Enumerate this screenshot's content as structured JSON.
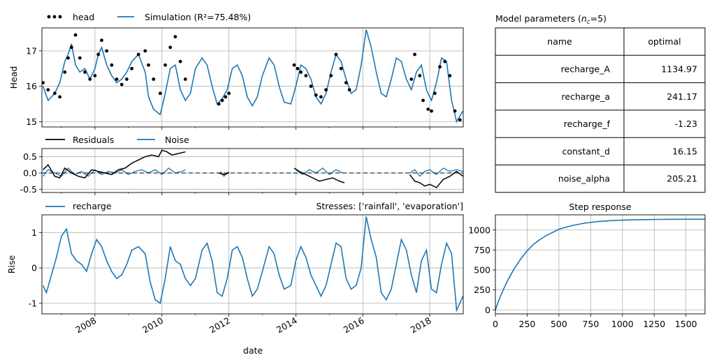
{
  "figure": {
    "x_axis_label": "date",
    "x_tick_labels": [
      "2008",
      "2010",
      "2012",
      "2014",
      "2016",
      "2018"
    ]
  },
  "chart_data": [
    {
      "id": "head",
      "type": "line",
      "ylabel": "Head",
      "xlim": [
        "2006-06-01",
        "2018-12-31"
      ],
      "ylim": [
        14.85,
        17.65
      ],
      "yticks": [
        15,
        16,
        17
      ],
      "grid": true,
      "legend": [
        "head",
        "Simulation (R²=75.48%)"
      ],
      "legend_placement": "top-left, above axes",
      "colors": {
        "observed": "#000000",
        "simulation": "#1f77b4"
      },
      "series": [
        {
          "name": "head",
          "style": "dots",
          "x": [
            2006.45,
            2006.6,
            2006.8,
            2006.95,
            2007.1,
            2007.2,
            2007.3,
            2007.42,
            2007.55,
            2007.7,
            2007.85,
            2008.0,
            2008.1,
            2008.2,
            2008.35,
            2008.5,
            2008.65,
            2008.8,
            2008.95,
            2009.1,
            2009.3,
            2009.5,
            2009.6,
            2009.75,
            2009.95,
            2010.1,
            2010.25,
            2010.4,
            2010.55,
            2010.7,
            2011.7,
            2011.8,
            2011.9,
            2012.0,
            2013.95,
            2014.05,
            2014.15,
            2014.3,
            2014.45,
            2014.6,
            2014.75,
            2014.9,
            2015.05,
            2015.2,
            2015.35,
            2015.5,
            2015.6,
            2017.45,
            2017.55,
            2017.7,
            2017.8,
            2017.95,
            2018.05,
            2018.15,
            2018.3,
            2018.45,
            2018.6,
            2018.75,
            2018.9
          ],
          "y": [
            16.1,
            15.9,
            15.8,
            15.7,
            16.4,
            16.8,
            17.1,
            17.45,
            16.8,
            16.4,
            16.2,
            16.3,
            16.9,
            17.3,
            17.0,
            16.6,
            16.2,
            16.05,
            16.2,
            16.5,
            16.9,
            17.0,
            16.6,
            16.2,
            15.8,
            16.6,
            17.1,
            17.4,
            16.7,
            16.2,
            15.5,
            15.6,
            15.7,
            15.8,
            16.6,
            16.5,
            16.4,
            16.3,
            16.0,
            15.75,
            15.7,
            15.9,
            16.3,
            16.9,
            16.5,
            16.1,
            15.9,
            16.2,
            16.9,
            16.3,
            15.6,
            15.35,
            15.3,
            15.8,
            16.55,
            16.7,
            16.3,
            15.3,
            15.05
          ]
        },
        {
          "name": "Simulation (R²=75.48%)",
          "style": "line",
          "x": [
            2006.45,
            2006.6,
            2006.8,
            2006.95,
            2007.1,
            2007.2,
            2007.3,
            2007.42,
            2007.55,
            2007.7,
            2007.85,
            2008.0,
            2008.1,
            2008.2,
            2008.35,
            2008.5,
            2008.65,
            2008.8,
            2008.95,
            2009.1,
            2009.3,
            2009.5,
            2009.6,
            2009.75,
            2009.95,
            2010.1,
            2010.25,
            2010.4,
            2010.55,
            2010.7,
            2010.85,
            2011.0,
            2011.2,
            2011.35,
            2011.5,
            2011.65,
            2011.8,
            2011.95,
            2012.1,
            2012.25,
            2012.4,
            2012.55,
            2012.7,
            2012.85,
            2013.0,
            2013.2,
            2013.35,
            2013.5,
            2013.65,
            2013.85,
            2014.0,
            2014.15,
            2014.3,
            2014.45,
            2014.6,
            2014.75,
            2014.9,
            2015.05,
            2015.2,
            2015.35,
            2015.5,
            2015.65,
            2015.8,
            2015.95,
            2016.1,
            2016.25,
            2016.4,
            2016.55,
            2016.7,
            2016.85,
            2017.0,
            2017.15,
            2017.3,
            2017.45,
            2017.6,
            2017.75,
            2017.9,
            2018.05,
            2018.2,
            2018.35,
            2018.5,
            2018.65,
            2018.8,
            2018.99
          ],
          "y": [
            16.0,
            15.6,
            15.8,
            16.1,
            16.7,
            16.9,
            17.2,
            16.6,
            16.4,
            16.5,
            16.2,
            16.5,
            16.9,
            17.1,
            16.6,
            16.3,
            16.1,
            16.2,
            16.4,
            16.7,
            16.9,
            16.4,
            15.7,
            15.35,
            15.2,
            15.8,
            16.5,
            16.6,
            15.9,
            15.6,
            15.8,
            16.5,
            16.8,
            16.6,
            16.0,
            15.5,
            15.65,
            15.9,
            16.5,
            16.6,
            16.3,
            15.7,
            15.45,
            15.7,
            16.3,
            16.8,
            16.6,
            16.0,
            15.55,
            15.5,
            16.0,
            16.6,
            16.5,
            16.2,
            15.7,
            15.5,
            15.8,
            16.4,
            16.9,
            16.7,
            16.2,
            15.8,
            15.9,
            16.6,
            17.6,
            17.1,
            16.4,
            15.8,
            15.7,
            16.2,
            16.8,
            16.7,
            16.2,
            15.9,
            16.4,
            16.6,
            15.9,
            15.6,
            16.1,
            16.8,
            16.7,
            15.6,
            15.0,
            15.3
          ]
        }
      ]
    },
    {
      "id": "residuals",
      "type": "line",
      "ylim": [
        -0.6,
        0.75
      ],
      "yticks": [
        -0.5,
        0.0,
        0.5
      ],
      "ytick_labels": [
        "-0.5",
        "0.0",
        "0.5"
      ],
      "grid": true,
      "legend": [
        "Residuals",
        "Noise"
      ],
      "colors": {
        "residuals": "#000000",
        "noise": "#1f77b4"
      },
      "series": [
        {
          "name": "Residuals",
          "segments": [
            {
              "x": [
                2006.45,
                2006.6,
                2006.8,
                2006.95,
                2007.1,
                2007.3,
                2007.5,
                2007.7,
                2007.9,
                2008.1,
                2008.3,
                2008.5,
                2008.7,
                2008.9,
                2009.1,
                2009.3,
                2009.5,
                2009.7,
                2009.9,
                2010.0,
                2010.15,
                2010.3,
                2010.5,
                2010.7
              ],
              "y": [
                0.1,
                0.25,
                -0.1,
                -0.15,
                0.15,
                0.0,
                -0.1,
                -0.15,
                0.1,
                0.05,
                0.0,
                -0.05,
                0.1,
                0.15,
                0.3,
                0.4,
                0.5,
                0.55,
                0.5,
                0.7,
                0.65,
                0.55,
                0.6,
                0.65
              ]
            },
            {
              "x": [
                2011.7,
                2011.85,
                2012.0
              ],
              "y": [
                0.0,
                -0.05,
                0.0
              ]
            },
            {
              "x": [
                2013.95,
                2014.1,
                2014.3,
                2014.5,
                2014.7,
                2014.9,
                2015.1,
                2015.3,
                2015.45
              ],
              "y": [
                0.15,
                0.05,
                -0.05,
                -0.15,
                -0.25,
                -0.2,
                -0.15,
                -0.25,
                -0.3
              ]
            },
            {
              "x": [
                2017.4,
                2017.55,
                2017.7,
                2017.85,
                2018.0,
                2018.2,
                2018.4,
                2018.6,
                2018.8,
                2018.99
              ],
              "y": [
                -0.05,
                -0.25,
                -0.3,
                -0.4,
                -0.35,
                -0.45,
                -0.2,
                -0.1,
                0.05,
                -0.1
              ]
            }
          ]
        },
        {
          "name": "Noise",
          "segments": [
            {
              "x": [
                2006.45,
                2006.6,
                2006.8,
                2007.0,
                2007.2,
                2007.4,
                2007.6,
                2007.8,
                2008.0,
                2008.2,
                2008.4,
                2008.6,
                2008.8,
                2009.0,
                2009.2,
                2009.4,
                2009.6,
                2009.8,
                2010.0,
                2010.2,
                2010.4,
                2010.6,
                2010.7
              ],
              "y": [
                -0.1,
                0.1,
                0.0,
                -0.1,
                0.15,
                -0.05,
                0.05,
                -0.1,
                0.1,
                -0.05,
                0.05,
                0.0,
                0.1,
                -0.05,
                0.05,
                0.1,
                0.0,
                0.1,
                -0.05,
                0.15,
                0.0,
                0.05,
                0.1
              ]
            },
            {
              "x": [
                2011.75,
                2011.85,
                2012.0
              ],
              "y": [
                0.05,
                -0.1,
                0.05
              ]
            },
            {
              "x": [
                2014.0,
                2014.2,
                2014.4,
                2014.6,
                2014.8,
                2015.0,
                2015.2,
                2015.4
              ],
              "y": [
                0.1,
                -0.05,
                0.1,
                0.0,
                0.15,
                -0.05,
                0.1,
                0.0
              ]
            },
            {
              "x": [
                2017.4,
                2017.55,
                2017.7,
                2017.85,
                2018.0,
                2018.2,
                2018.4,
                2018.6,
                2018.8,
                2018.99
              ],
              "y": [
                0.0,
                0.1,
                -0.1,
                0.05,
                0.1,
                -0.05,
                0.15,
                0.05,
                0.1,
                0.05
              ]
            }
          ]
        }
      ],
      "zero_line": {
        "y": 0,
        "style": "dashed",
        "color": "#000000"
      }
    },
    {
      "id": "recharge",
      "type": "line",
      "title": "Stresses: ['rainfall', 'evaporation']",
      "ylabel": "Rise",
      "ylim": [
        -1.3,
        1.5
      ],
      "yticks": [
        -1,
        0,
        1
      ],
      "grid": true,
      "legend": [
        "recharge"
      ],
      "colors": {
        "recharge": "#1f77b4"
      },
      "series": [
        {
          "name": "recharge",
          "x": [
            2006.45,
            2006.55,
            2006.7,
            2006.85,
            2007.0,
            2007.15,
            2007.3,
            2007.45,
            2007.6,
            2007.75,
            2007.9,
            2008.05,
            2008.2,
            2008.35,
            2008.5,
            2008.65,
            2008.8,
            2008.95,
            2009.1,
            2009.3,
            2009.5,
            2009.65,
            2009.8,
            2009.95,
            2010.1,
            2010.25,
            2010.4,
            2010.55,
            2010.7,
            2010.85,
            2011.0,
            2011.2,
            2011.35,
            2011.5,
            2011.65,
            2011.8,
            2011.95,
            2012.1,
            2012.25,
            2012.4,
            2012.55,
            2012.7,
            2012.85,
            2013.0,
            2013.2,
            2013.35,
            2013.5,
            2013.65,
            2013.85,
            2014.0,
            2014.15,
            2014.3,
            2014.45,
            2014.6,
            2014.75,
            2014.9,
            2015.05,
            2015.2,
            2015.35,
            2015.5,
            2015.65,
            2015.8,
            2015.95,
            2016.1,
            2016.25,
            2016.4,
            2016.55,
            2016.7,
            2016.85,
            2017.0,
            2017.15,
            2017.3,
            2017.45,
            2017.6,
            2017.75,
            2017.9,
            2018.05,
            2018.2,
            2018.35,
            2018.5,
            2018.65,
            2018.8,
            2018.99
          ],
          "y": [
            -0.5,
            -0.7,
            -0.2,
            0.3,
            0.9,
            1.1,
            0.4,
            0.2,
            0.1,
            -0.1,
            0.4,
            0.8,
            0.6,
            0.2,
            -0.1,
            -0.3,
            -0.2,
            0.1,
            0.5,
            0.6,
            0.4,
            -0.4,
            -0.9,
            -1.0,
            -0.3,
            0.6,
            0.2,
            0.1,
            -0.3,
            -0.5,
            -0.3,
            0.5,
            0.7,
            0.2,
            -0.7,
            -0.8,
            -0.3,
            0.5,
            0.6,
            0.3,
            -0.3,
            -0.8,
            -0.6,
            -0.1,
            0.6,
            0.4,
            -0.2,
            -0.6,
            -0.5,
            0.2,
            0.6,
            0.3,
            -0.2,
            -0.5,
            -0.8,
            -0.5,
            0.1,
            0.7,
            0.6,
            -0.3,
            -0.6,
            -0.5,
            0.0,
            1.45,
            0.8,
            0.3,
            -0.7,
            -0.9,
            -0.6,
            0.1,
            0.8,
            0.5,
            -0.2,
            -0.7,
            0.2,
            0.5,
            -0.6,
            -0.7,
            0.1,
            0.7,
            0.4,
            -1.2,
            -0.8
          ]
        }
      ]
    },
    {
      "id": "step-response",
      "type": "line",
      "title": "Step response",
      "xlim": [
        0,
        1650
      ],
      "ylim": [
        -50,
        1190
      ],
      "xticks": [
        0,
        250,
        500,
        750,
        1000,
        1250,
        1500
      ],
      "yticks": [
        0,
        250,
        500,
        750,
        1000
      ],
      "grid": true,
      "colors": {
        "line": "#1f77b4"
      },
      "series": [
        {
          "name": "",
          "x": [
            0,
            25,
            50,
            100,
            150,
            200,
            250,
            300,
            350,
            400,
            500,
            600,
            700,
            800,
            900,
            1000,
            1100,
            1200,
            1300,
            1400,
            1500,
            1650
          ],
          "y": [
            0,
            110,
            210,
            380,
            520,
            640,
            740,
            820,
            880,
            930,
            1010,
            1055,
            1085,
            1105,
            1117,
            1124,
            1128,
            1131,
            1133,
            1134,
            1135,
            1135
          ]
        }
      ]
    }
  ],
  "params_table": {
    "title_prefix": "Model parameters (",
    "title_var": "n",
    "title_sub": "c",
    "title_suffix": "=5)",
    "headers": [
      "name",
      "optimal"
    ],
    "rows": [
      [
        "recharge_A",
        "1134.97"
      ],
      [
        "recharge_a",
        "241.17"
      ],
      [
        "recharge_f",
        "-1.23"
      ],
      [
        "constant_d",
        "16.15"
      ],
      [
        "noise_alpha",
        "205.21"
      ]
    ]
  }
}
